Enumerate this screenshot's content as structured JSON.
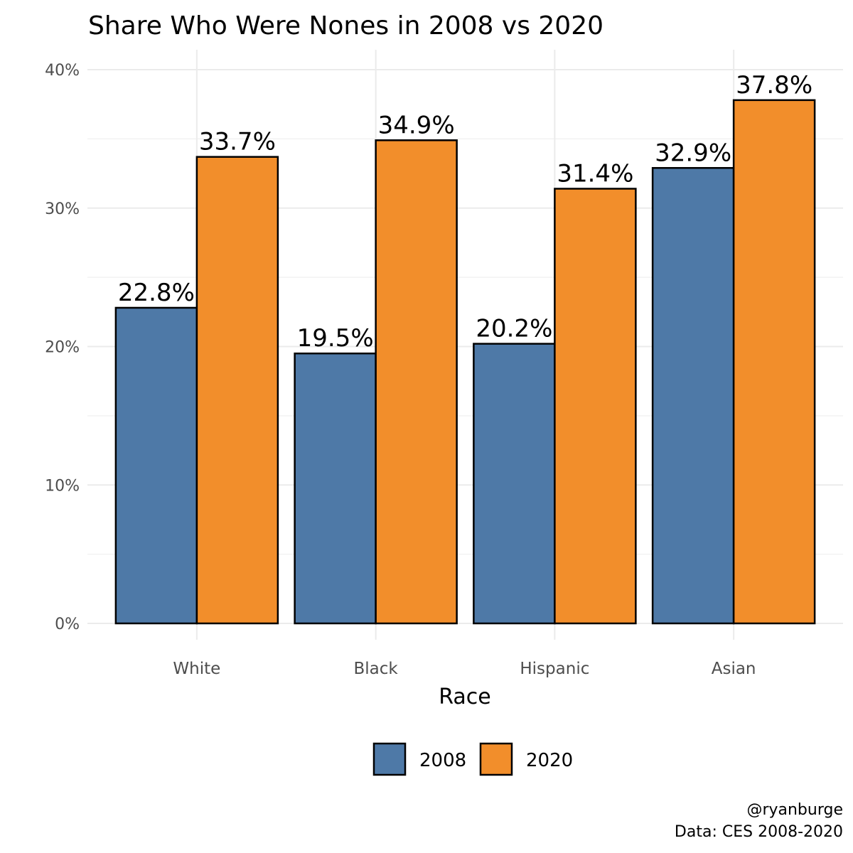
{
  "chart_data": {
    "type": "bar",
    "title": "Share Who Were Nones in 2008 vs 2020",
    "xlabel": "Race",
    "ylabel": "",
    "categories": [
      "White",
      "Black",
      "Hispanic",
      "Asian"
    ],
    "series": [
      {
        "name": "2008",
        "color": "#4e79a7",
        "values": [
          22.8,
          19.5,
          20.2,
          32.9
        ],
        "labels": [
          "22.8%",
          "19.5%",
          "20.2%",
          "32.9%"
        ]
      },
      {
        "name": "2020",
        "color": "#f28e2b",
        "values": [
          33.7,
          34.9,
          31.4,
          37.8
        ],
        "labels": [
          "33.7%",
          "34.9%",
          "31.4%",
          "37.8%"
        ]
      }
    ],
    "ylim": [
      0,
      40
    ],
    "yticks": [
      0,
      10,
      20,
      30,
      40
    ],
    "ytick_labels": [
      "0%",
      "10%",
      "20%",
      "30%",
      "40%"
    ],
    "grid": true,
    "legend_position": "bottom",
    "caption": [
      "@ryanburge",
      "Data: CES 2008-2020"
    ]
  }
}
